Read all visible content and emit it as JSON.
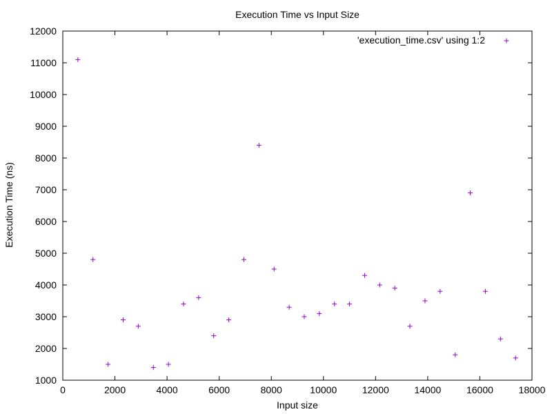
{
  "chart_data": {
    "type": "scatter",
    "title": "Execution Time vs Input Size",
    "xlabel": "Input size",
    "ylabel": "Execution Time (ns)",
    "xlim": [
      0,
      18000
    ],
    "ylim": [
      1000,
      12000
    ],
    "xticks": [
      0,
      2000,
      4000,
      6000,
      8000,
      10000,
      12000,
      14000,
      16000,
      18000
    ],
    "yticks": [
      1000,
      2000,
      3000,
      4000,
      5000,
      6000,
      7000,
      8000,
      9000,
      10000,
      11000,
      12000
    ],
    "grid": false,
    "legend_position": "top-right",
    "series": [
      {
        "name": "'execution_time.csv' using 1:2",
        "color": "#9400d3",
        "marker": "plus",
        "x": [
          579,
          1158,
          1737,
          2316,
          2895,
          3474,
          4053,
          4632,
          5211,
          5790,
          6369,
          6948,
          7527,
          8106,
          8685,
          9264,
          9843,
          10422,
          11001,
          11580,
          12159,
          12738,
          13317,
          13896,
          14475,
          15054,
          15633,
          16212,
          16791,
          17370
        ],
        "y": [
          11100,
          4800,
          1500,
          2900,
          2700,
          1400,
          1500,
          3400,
          3600,
          2400,
          2900,
          4800,
          8400,
          4500,
          3300,
          3000,
          3100,
          3400,
          3400,
          4300,
          4000,
          3900,
          2700,
          3500,
          3800,
          1800,
          6900,
          3800,
          2300,
          1700
        ]
      }
    ]
  }
}
